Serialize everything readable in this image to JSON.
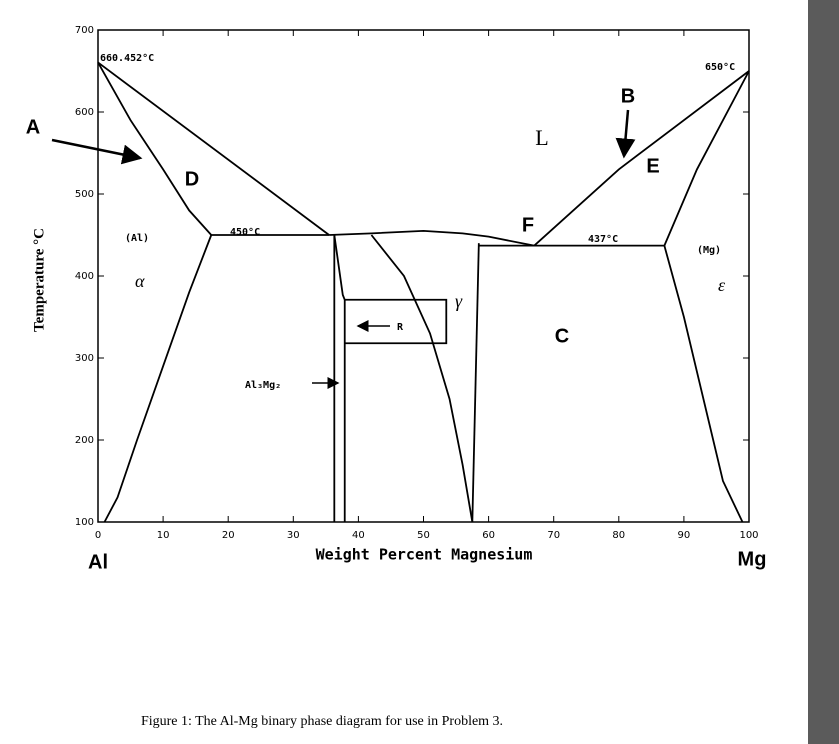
{
  "caption": "Figure 1:  The Al-Mg binary phase diagram for use in Problem 3.",
  "chart_data": {
    "type": "line",
    "y_label": "Temperature °C",
    "x_label": "Weight Percent Magnesium",
    "x_left_label": "Al",
    "x_right_label": "Mg",
    "xlim": [
      0,
      100
    ],
    "ylim": [
      100,
      700
    ],
    "xticks": [
      0,
      10,
      20,
      30,
      40,
      50,
      60,
      70,
      80,
      90,
      100
    ],
    "yticks": [
      100,
      200,
      300,
      400,
      500,
      600,
      700
    ],
    "color": "#000000",
    "series": [
      {
        "x": [
          0,
          35.5
        ],
        "values": [
          660.452,
          450
        ]
      },
      {
        "x": [
          0,
          5,
          10,
          14,
          17.4
        ],
        "values": [
          660.452,
          590,
          530,
          480,
          450
        ]
      },
      {
        "x": [
          17.4,
          14,
          10,
          6,
          3,
          1
        ],
        "values": [
          450,
          380,
          290,
          200,
          130,
          100
        ]
      },
      {
        "x": [
          17.4,
          35.5
        ],
        "values": [
          450,
          450
        ]
      },
      {
        "x": [
          36.3,
          36.3
        ],
        "values": [
          450,
          100
        ]
      },
      {
        "x": [
          36.3,
          37.6,
          37.9,
          37.9
        ],
        "values": [
          450,
          377,
          371,
          100
        ]
      },
      {
        "x": [
          37.9,
          53.5,
          53.5,
          37.9
        ],
        "values": [
          371,
          371,
          318,
          318
        ]
      },
      {
        "x": [
          35.5,
          42,
          50,
          56,
          60,
          67
        ],
        "values": [
          450,
          452,
          455,
          452,
          448,
          437
        ]
      },
      {
        "x": [
          42,
          47,
          51,
          54,
          56,
          57.5
        ],
        "values": [
          450,
          400,
          330,
          250,
          170,
          100
        ]
      },
      {
        "x": [
          57.5,
          58.5
        ],
        "values": [
          100,
          440
        ]
      },
      {
        "x": [
          58.5,
          87
        ],
        "values": [
          437,
          437
        ]
      },
      {
        "x": [
          67,
          80,
          100
        ],
        "values": [
          437,
          530,
          650
        ]
      },
      {
        "x": [
          87,
          92,
          100
        ],
        "values": [
          437,
          530,
          650
        ]
      },
      {
        "x": [
          87,
          90,
          93,
          96,
          99
        ],
        "values": [
          437,
          350,
          250,
          150,
          100
        ]
      }
    ],
    "annotations": [
      "660.452°C",
      "450°C",
      "437°C",
      "650°C",
      "(Al)",
      "α",
      "(Mg)",
      "ε",
      "γ",
      "L",
      "Al₃Mg₂",
      "R",
      "A",
      "B",
      "C",
      "D",
      "E",
      "F"
    ]
  }
}
